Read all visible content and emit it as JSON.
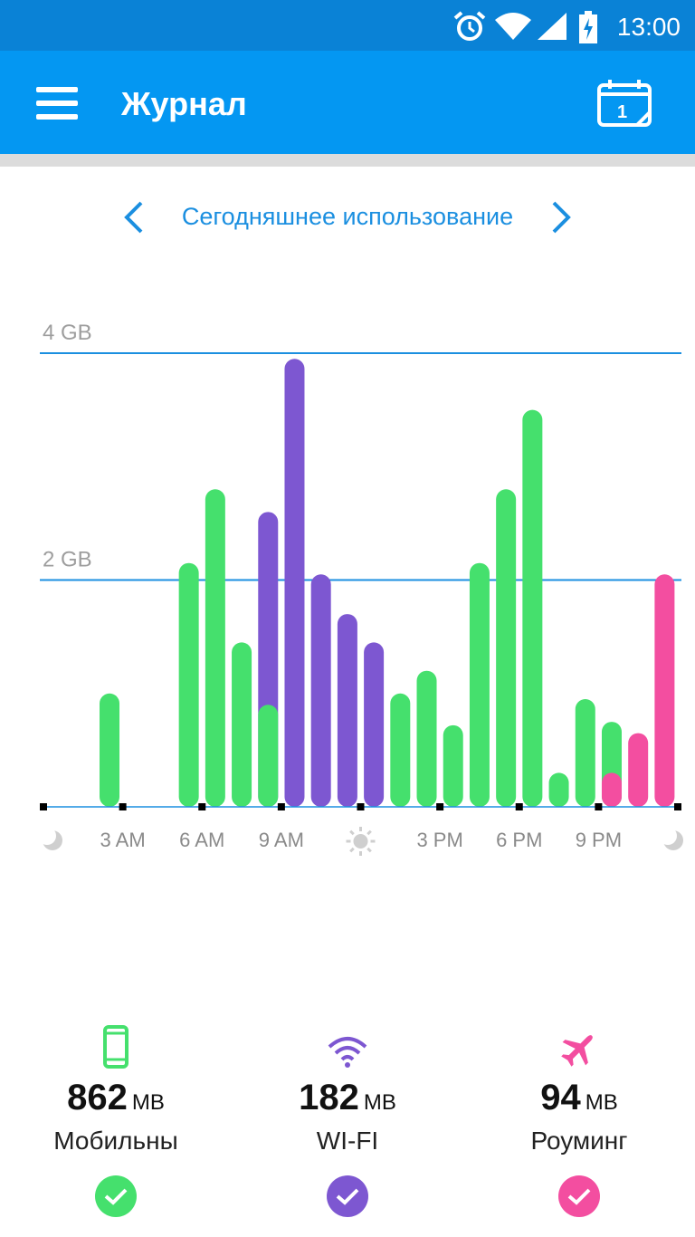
{
  "status_bar": {
    "time": "13:00"
  },
  "app_bar": {
    "title": "Журнал"
  },
  "period": {
    "label": "Сегодняшнее использование"
  },
  "chart_data": {
    "type": "bar",
    "ylim": [
      0,
      4
    ],
    "yticks": [
      {
        "value": 4,
        "label": "4 GB"
      },
      {
        "value": 2,
        "label": "2 GB"
      }
    ],
    "xticks": [
      "3 AM",
      "6 AM",
      "9 AM",
      "3 PM",
      "6 PM",
      "9 PM"
    ],
    "x_icons": [
      "moon-icon",
      "sun-icon",
      "moon-icon"
    ],
    "series_colors": {
      "mobile": "#45e06d",
      "wifi": "#7d57d1",
      "roaming": "#f34ea0"
    },
    "bars": [
      {
        "hour": 2,
        "series": "mobile",
        "value": 1.0
      },
      {
        "hour": 5,
        "series": "mobile",
        "value": 2.15
      },
      {
        "hour": 6,
        "series": "mobile",
        "value": 2.8
      },
      {
        "hour": 7,
        "series": "mobile",
        "value": 1.45
      },
      {
        "hour": 8,
        "series": "wifi",
        "value": 2.6
      },
      {
        "hour": 8,
        "series": "mobile",
        "value": 0.9
      },
      {
        "hour": 9,
        "series": "wifi",
        "value": 3.95
      },
      {
        "hour": 10,
        "series": "wifi",
        "value": 2.05
      },
      {
        "hour": 11,
        "series": "wifi",
        "value": 1.7
      },
      {
        "hour": 12,
        "series": "wifi",
        "value": 1.45
      },
      {
        "hour": 13,
        "series": "mobile",
        "value": 1.0
      },
      {
        "hour": 14,
        "series": "mobile",
        "value": 1.2
      },
      {
        "hour": 15,
        "series": "mobile",
        "value": 0.72
      },
      {
        "hour": 16,
        "series": "mobile",
        "value": 2.15
      },
      {
        "hour": 17,
        "series": "mobile",
        "value": 2.8
      },
      {
        "hour": 18,
        "series": "mobile",
        "value": 3.5
      },
      {
        "hour": 19,
        "series": "mobile",
        "value": 0.3
      },
      {
        "hour": 20,
        "series": "mobile",
        "value": 0.95
      },
      {
        "hour": 21,
        "series": "mobile",
        "value": 0.75
      },
      {
        "hour": 21,
        "series": "roaming",
        "value": 0.3
      },
      {
        "hour": 22,
        "series": "roaming",
        "value": 0.65
      },
      {
        "hour": 23,
        "series": "roaming",
        "value": 2.05
      }
    ]
  },
  "stats": [
    {
      "key": "mobile",
      "icon": "phone-icon",
      "color": "#45e06d",
      "value": "862",
      "unit": "MB",
      "label": "Мобильны"
    },
    {
      "key": "wifi",
      "icon": "wifi-icon",
      "color": "#7d57d1",
      "value": "182",
      "unit": "MB",
      "label": "WI-FI"
    },
    {
      "key": "roaming",
      "icon": "airplane-icon",
      "color": "#f34ea0",
      "value": "94",
      "unit": "MB",
      "label": "Роуминг"
    }
  ]
}
